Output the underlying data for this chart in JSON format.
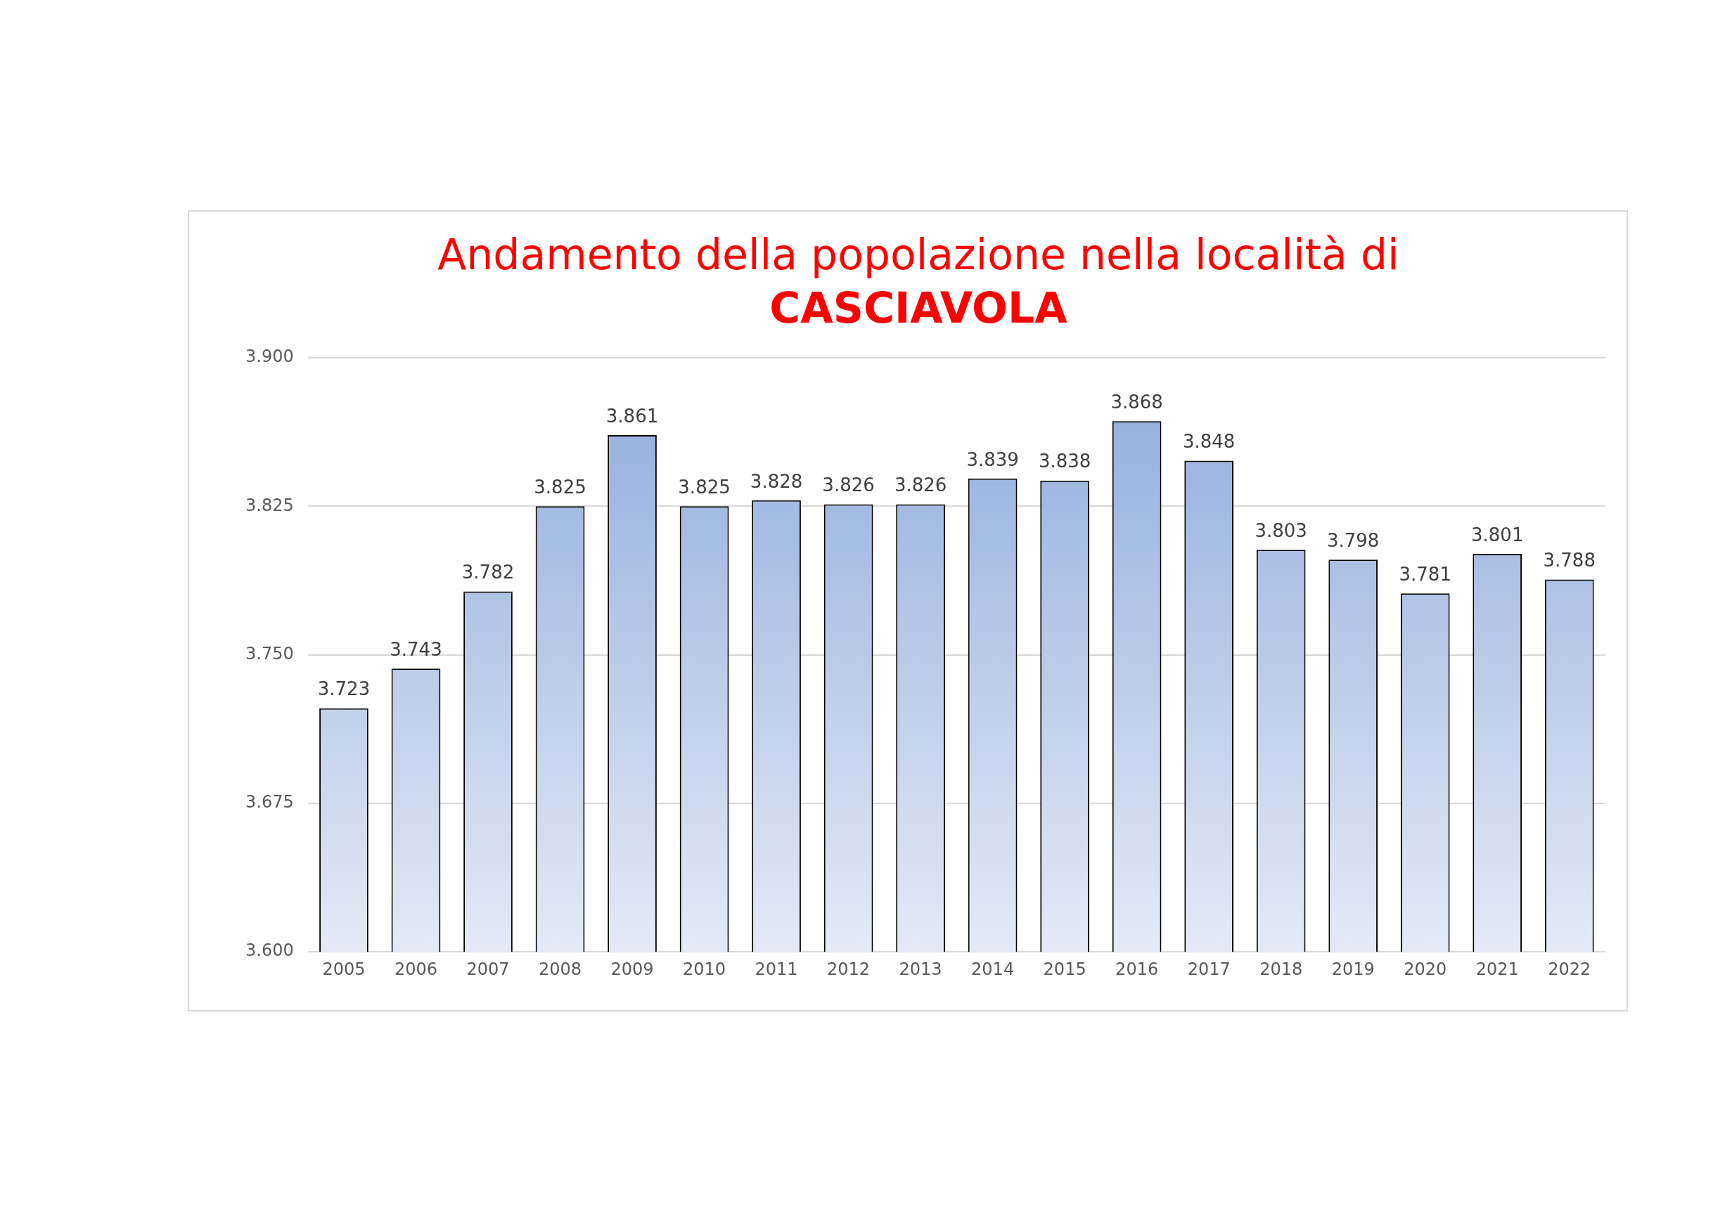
{
  "chart_data": {
    "type": "bar",
    "title": "Andamento della popolazione nella località di",
    "subtitle": "CASCIAVOLA",
    "categories": [
      "2005",
      "2006",
      "2007",
      "2008",
      "2009",
      "2010",
      "2011",
      "2012",
      "2013",
      "2014",
      "2015",
      "2016",
      "2017",
      "2018",
      "2019",
      "2020",
      "2021",
      "2022"
    ],
    "values": [
      3723,
      3743,
      3782,
      3825,
      3861,
      3825,
      3828,
      3826,
      3826,
      3839,
      3838,
      3868,
      3848,
      3803,
      3798,
      3781,
      3801,
      3788
    ],
    "value_labels": [
      "3.723",
      "3.743",
      "3.782",
      "3.825",
      "3.861",
      "3.825",
      "3.828",
      "3.826",
      "3.826",
      "3.839",
      "3.838",
      "3.868",
      "3.848",
      "3.803",
      "3.798",
      "3.781",
      "3.801",
      "3.788"
    ],
    "color": "#8eaadb",
    "ylim": [
      3600,
      3900
    ],
    "yticks": [
      {
        "value": 3600,
        "label": "3.600"
      },
      {
        "value": 3675,
        "label": "3.675"
      },
      {
        "value": 3750,
        "label": "3.750"
      },
      {
        "value": 3825,
        "label": "3.825"
      },
      {
        "value": 3900,
        "label": "3.900"
      }
    ],
    "grid": "y",
    "legend": false
  }
}
